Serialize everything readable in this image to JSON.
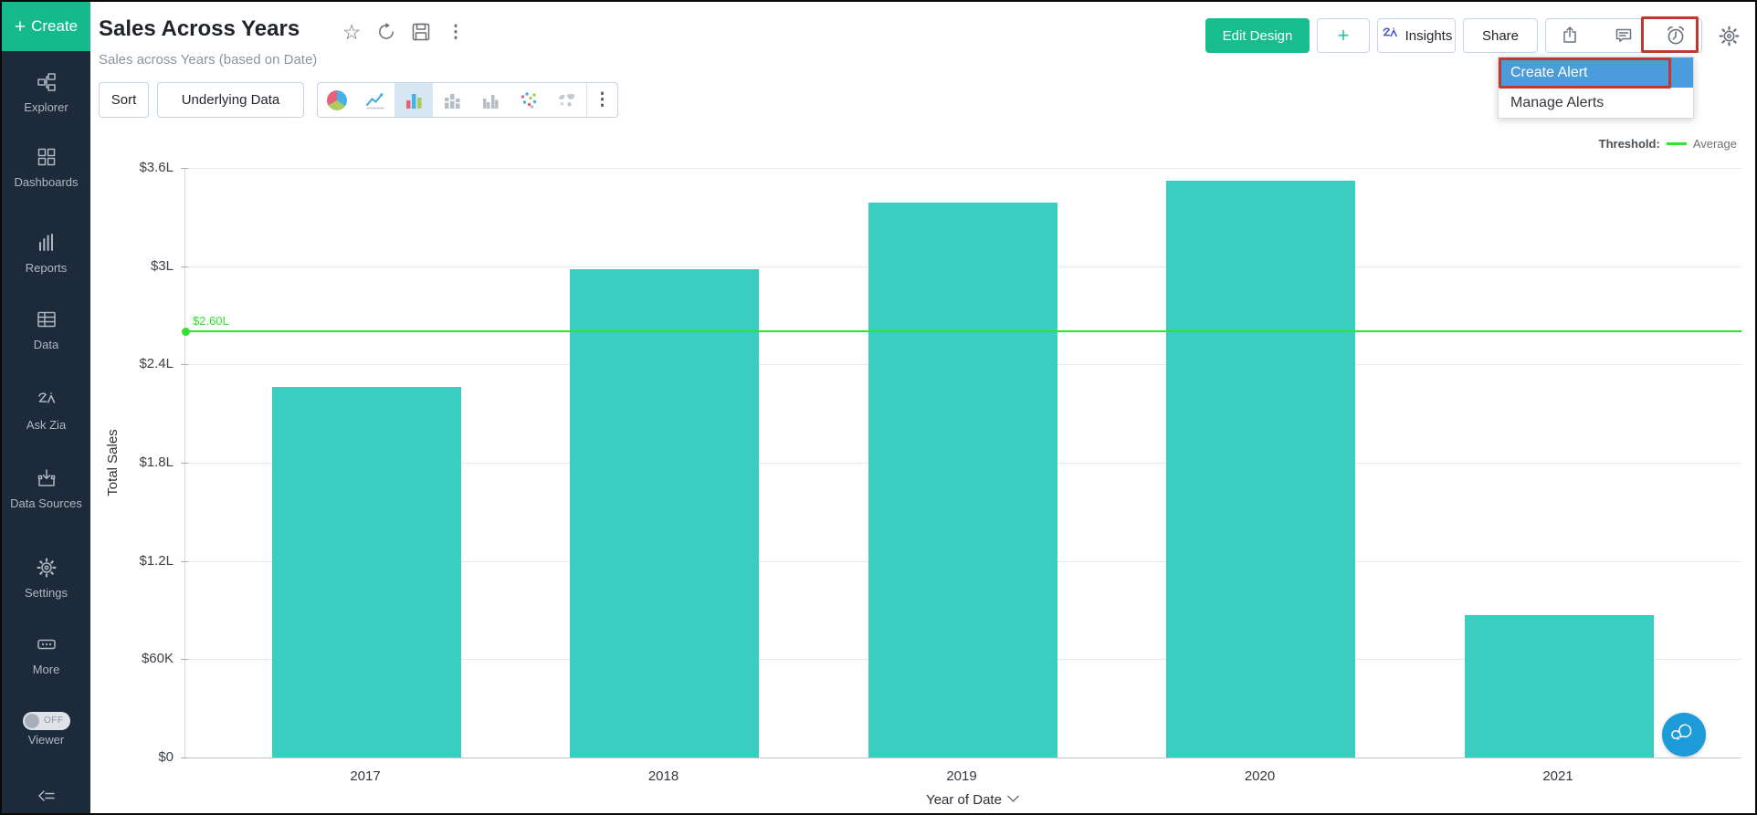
{
  "colors": {
    "accent_green": "#17bc8f",
    "sidebar_bg": "#1d2a3a",
    "bar_teal": "#3acdc1",
    "threshold_green": "#2ce62c",
    "annotation_red": "#c0382e",
    "dropdown_highlight_blue": "#4a9cdb",
    "chat_blue": "#1d9bd8"
  },
  "sidebar": {
    "create_label": "Create",
    "items": [
      {
        "label": "Explorer",
        "icon": "hierarchy-icon"
      },
      {
        "label": "Dashboards",
        "icon": "grid-icon"
      },
      {
        "label": "Reports",
        "icon": "bar-chart-icon"
      },
      {
        "label": "Data",
        "icon": "table-icon"
      },
      {
        "label": "Ask Zia",
        "icon": "zia-icon"
      },
      {
        "label": "Data Sources",
        "icon": "import-icon"
      },
      {
        "label": "Settings",
        "icon": "gear-icon"
      },
      {
        "label": "More",
        "icon": "ellipsis-icon"
      }
    ],
    "viewer_toggle": {
      "label": "Viewer",
      "state": "OFF"
    }
  },
  "header": {
    "title": "Sales Across Years",
    "subtitle": "Sales across Years (based on Date)",
    "edit_design": "Edit Design",
    "add": "+",
    "insights": "Insights",
    "share": "Share"
  },
  "alert_menu": {
    "create_alert": "Create Alert",
    "manage_alerts": "Manage Alerts"
  },
  "toolbar": {
    "sort": "Sort",
    "underlying_data": "Underlying Data",
    "chart_types": [
      "pie",
      "line",
      "bar",
      "stacked-bar",
      "grouped-bar",
      "scatter",
      "map"
    ],
    "selected_chart": "bar"
  },
  "legend": {
    "threshold_label": "Threshold:",
    "series_label": "Average"
  },
  "chart_data": {
    "type": "bar",
    "categories": [
      "2017",
      "2018",
      "2019",
      "2020",
      "2021"
    ],
    "values": [
      2.26,
      2.98,
      3.39,
      3.52,
      0.87
    ],
    "values_unit": "lakh",
    "series_name": "Total Sales",
    "xlabel": "Year of Date",
    "ylabel": "Total Sales",
    "ylim": [
      0,
      3.6
    ],
    "y_ticks": [
      {
        "value": 0,
        "label": "$0"
      },
      {
        "value": 0.6,
        "label": "$60K"
      },
      {
        "value": 1.2,
        "label": "$1.2L"
      },
      {
        "value": 1.8,
        "label": "$1.8L"
      },
      {
        "value": 2.4,
        "label": "$2.4L"
      },
      {
        "value": 3.0,
        "label": "$3L"
      },
      {
        "value": 3.6,
        "label": "$3.6L"
      }
    ],
    "threshold": {
      "value": 2.6,
      "label": "$2.60L",
      "name": "Average"
    },
    "grid": true,
    "legend_position": "top-right",
    "bar_color": "#3acdc1"
  }
}
